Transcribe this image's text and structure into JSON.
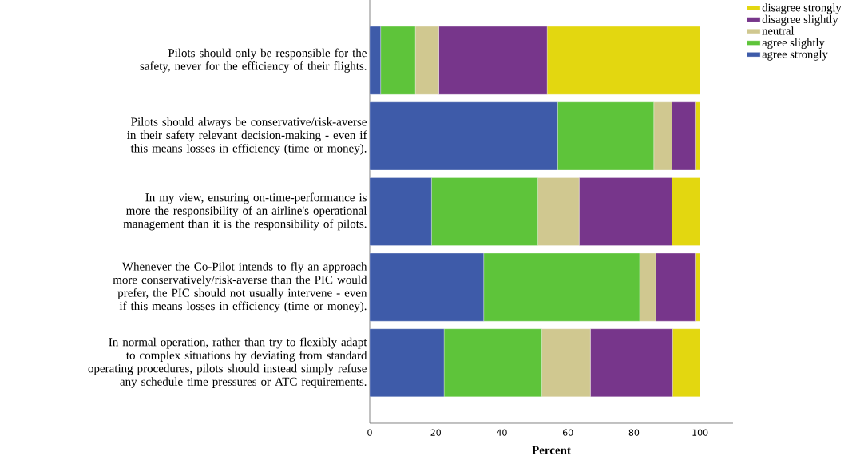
{
  "chart_data": {
    "type": "bar",
    "orientation": "horizontal",
    "stacked": true,
    "xlabel": "Percent",
    "categories": [
      "Pilots should only be responsible for the safety, never for the efficiency of their flights.",
      "Pilots should always be conservative/risk-averse in their safety relevant decision-making - even if this means losses in efficiency (time or money).",
      "In my view, ensuring on-time-performance is more the responsibility of an airline's operational management than it is the responsibility of pilots.",
      "Whenever the Co-Pilot intends to fly an approach more conservatively/risk-averse than the PIC would prefer, the PIC should not usually intervene - even if this means losses in efficiency (time or money).",
      "In normal operation, rather than try to flexibly adapt to complex situations by deviating from standard operating procedures, pilots should instead simply refuse any schedule time pressures or ATC requirements."
    ],
    "series": [
      {
        "name": "agree strongly",
        "color": "#3e5ba9",
        "values": [
          3.3,
          56.9,
          18.7,
          34.5,
          22.5
        ]
      },
      {
        "name": "agree slightly",
        "color": "#5ec43a",
        "values": [
          10.5,
          29.1,
          32.2,
          47.2,
          29.6
        ]
      },
      {
        "name": "neutral",
        "color": "#d0c890",
        "values": [
          7.1,
          5.5,
          12.5,
          4.9,
          14.7
        ]
      },
      {
        "name": "disagree slightly",
        "color": "#77368b",
        "values": [
          32.8,
          7.0,
          28.1,
          11.9,
          24.9
        ]
      },
      {
        "name": "disagree strongly",
        "color": "#e3d710",
        "values": [
          46.3,
          1.5,
          8.5,
          1.5,
          8.3
        ]
      }
    ],
    "xlim": [
      0,
      110
    ],
    "xticks": [
      0,
      20,
      40,
      60,
      80,
      100
    ],
    "grid": false,
    "legend": "top right"
  }
}
